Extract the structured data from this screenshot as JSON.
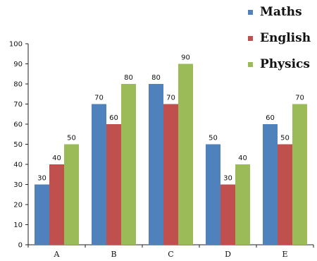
{
  "chart_data": {
    "type": "bar",
    "categories": [
      "A",
      "B",
      "C",
      "D",
      "E"
    ],
    "series": [
      {
        "name": "Maths",
        "values": [
          30,
          70,
          80,
          50,
          60
        ],
        "color": "#4f81bd"
      },
      {
        "name": "English",
        "values": [
          40,
          60,
          70,
          30,
          50
        ],
        "color": "#c0504d"
      },
      {
        "name": "Physics",
        "values": [
          50,
          80,
          90,
          40,
          70
        ],
        "color": "#9bbb59"
      }
    ],
    "ylim": [
      0,
      100
    ],
    "yticks": [
      0,
      10,
      20,
      30,
      40,
      50,
      60,
      70,
      80,
      90,
      100
    ],
    "grid": false,
    "legend_position": "top-right",
    "data_labels": true
  }
}
